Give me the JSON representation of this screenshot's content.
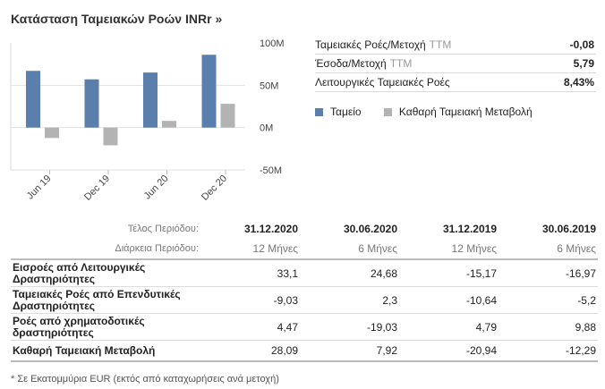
{
  "header": {
    "title": "Κατάσταση Ταμειακών Ροών INRr",
    "chevron": "»"
  },
  "chart_data": {
    "type": "bar",
    "categories": [
      "Jun 19",
      "Dec 19",
      "Jun 20",
      "Dec 20"
    ],
    "series": [
      {
        "name": "Ταμείο",
        "color": "#5b7fac",
        "values": [
          67,
          57,
          65,
          86
        ]
      },
      {
        "name": "Καθαρή Ταμειακή Μεταβολή",
        "color": "#b3b3b3",
        "values": [
          -12.29,
          -20.94,
          7.92,
          28.09
        ]
      }
    ],
    "yticks": [
      "100M",
      "50M",
      "0M",
      "-50M"
    ],
    "ylim": [
      -50,
      100
    ],
    "grid": true
  },
  "ratios": [
    {
      "label": "Ταμειακές Ροές/Μετοχή",
      "suffix": "TTM",
      "value": "-0,08"
    },
    {
      "label": "Έσοδα/Μετοχή",
      "suffix": "TTM",
      "value": "5,79"
    },
    {
      "label": "Λειτουργικές Ταμειακές Ροές",
      "suffix": "",
      "value": "8,43%"
    }
  ],
  "legend": [
    {
      "label": "Ταμείο",
      "color": "#5b7fac"
    },
    {
      "label": "Καθαρή Ταμειακή Μεταβολή",
      "color": "#b3b3b3"
    }
  ],
  "table": {
    "period_end_label": "Τέλος Περιόδου:",
    "duration_label": "Διάρκεια Περιόδου:",
    "periods": [
      "31.12.2020",
      "30.06.2020",
      "31.12.2019",
      "30.06.2019"
    ],
    "durations": [
      "12 Μήνες",
      "6 Μήνες",
      "12 Μήνες",
      "6 Μήνες"
    ],
    "rows": [
      {
        "label": "Εισροές από Λειτουργικές Δραστηριότητες",
        "values": [
          "33,1",
          "24,68",
          "-15,17",
          "-16,97"
        ]
      },
      {
        "label": "Ταμειακές Ροές από Επενδυτικές Δραστηριότητες",
        "values": [
          "-9,03",
          "2,3",
          "-10,64",
          "-5,2"
        ]
      },
      {
        "label": "Ροές από χρηματοδοτικές δραστηριότητες",
        "values": [
          "4,47",
          "-19,03",
          "4,79",
          "9,88"
        ]
      },
      {
        "label": "Καθαρή Ταμειακή Μεταβολή",
        "values": [
          "28,09",
          "7,92",
          "-20,94",
          "-12,29"
        ]
      }
    ]
  },
  "footnote": "* Σε Εκατομμύρια EUR (εκτός από καταχωρήσεις ανά μετοχή)"
}
